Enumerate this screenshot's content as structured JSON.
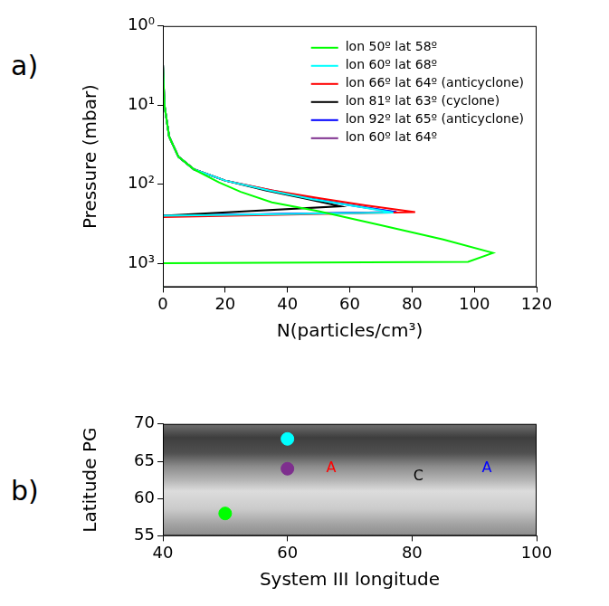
{
  "chart_data": [
    {
      "panel_label": "a)",
      "type": "line",
      "x_label": "N(particles/cm³)",
      "y_label": "Pressure (mbar)",
      "log": "y",
      "xlim": [
        0,
        120
      ],
      "xticks": [
        0,
        20,
        40,
        60,
        80,
        100,
        120
      ],
      "ylim": [
        1,
        2000
      ],
      "yticks": [
        {
          "value": 1,
          "label": "10⁰"
        },
        {
          "value": 10,
          "label": "10¹"
        },
        {
          "value": 100,
          "label": "10²"
        },
        {
          "value": 1000,
          "label": "10³"
        }
      ],
      "grid": false,
      "legend": "upper right",
      "series": [
        {
          "name": "lon 50º lat 58º",
          "color": "#00ff00",
          "x": [
            0,
            0.5,
            2,
            5,
            10,
            18,
            25,
            35,
            50,
            70,
            90,
            106,
            98,
            0,
            0
          ],
          "values": [
            3,
            10,
            25,
            45,
            65,
            95,
            125,
            170,
            220,
            330,
            500,
            740,
            960,
            1000,
            2000
          ]
        },
        {
          "name": "lon 60º lat 68º",
          "color": "#00ffff",
          "x": [
            0,
            0,
            0.5,
            2,
            5,
            10,
            20,
            34,
            48,
            62,
            74,
            0,
            0
          ],
          "values": [
            1.3,
            3,
            10,
            25,
            45,
            65,
            90,
            120,
            155,
            190,
            228,
            250,
            2000
          ]
        },
        {
          "name": "lon 66º lat 64º (anticyclone)",
          "color": "#ff0000",
          "x": [
            0,
            0.5,
            2,
            5,
            10,
            20,
            35,
            50,
            65,
            81,
            0,
            0
          ],
          "values": [
            3,
            10,
            25,
            45,
            65,
            90,
            120,
            150,
            185,
            225,
            260,
            2000
          ]
        },
        {
          "name": "lon 81º lat 63º (cyclone)",
          "color": "#000000",
          "x": [
            0,
            0.5,
            2,
            5,
            10,
            20,
            33,
            45,
            57,
            0,
            0
          ],
          "values": [
            3,
            10,
            25,
            45,
            65,
            90,
            120,
            150,
            190,
            250,
            2000
          ]
        },
        {
          "name": "lon 92º lat 65º (anticyclone)",
          "color": "#0000ff",
          "x": [
            0,
            0.5,
            2,
            5,
            10,
            20,
            34,
            48,
            62,
            75,
            0,
            0
          ],
          "values": [
            3,
            10,
            25,
            45,
            65,
            90,
            120,
            155,
            190,
            225,
            250,
            2000
          ]
        },
        {
          "name": "lon 60º lat 64º",
          "color": "#7e2f8e",
          "x": [
            0,
            0.5,
            2,
            5,
            10,
            20,
            35,
            49,
            63,
            75,
            0,
            0
          ],
          "values": [
            3,
            10,
            25,
            45,
            65,
            90,
            120,
            155,
            190,
            226,
            252,
            2000
          ]
        }
      ]
    },
    {
      "panel_label": "b)",
      "type": "scatter",
      "x_label": "System III longitude",
      "y_label": "Latitude PG",
      "xlim": [
        40,
        100
      ],
      "xticks": [
        40,
        60,
        80,
        100
      ],
      "ylim": [
        55,
        70
      ],
      "yticks": [
        55,
        60,
        65,
        70
      ],
      "grid": false,
      "x": [
        50,
        60,
        60
      ],
      "values": [
        58,
        68,
        64
      ],
      "colors": [
        "#00ff00",
        "#00ffff",
        "#7e2f8e"
      ],
      "annotations": [
        {
          "text": "A",
          "x": 67,
          "y": 64,
          "color": "#ff0000"
        },
        {
          "text": "C",
          "x": 81,
          "y": 63,
          "color": "#000000"
        },
        {
          "text": "A",
          "x": 92,
          "y": 64,
          "color": "#0000ff"
        }
      ]
    }
  ]
}
